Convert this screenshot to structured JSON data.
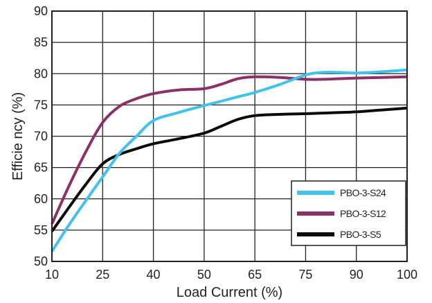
{
  "chart_data": {
    "type": "line",
    "title": "",
    "xlabel": "Load Current (%)",
    "ylabel": "Efficie ncy (%)",
    "x_categories": [
      "10",
      "25",
      "40",
      "50",
      "65",
      "75",
      "90",
      "100"
    ],
    "xlim": [
      10,
      100
    ],
    "ylim": [
      50,
      90
    ],
    "y_ticks": [
      "50",
      "55",
      "60",
      "65",
      "70",
      "75",
      "80",
      "85",
      "90"
    ],
    "grid": true,
    "legend_position": "bottom-right",
    "series": [
      {
        "name": "PBO-3-S24",
        "color": "#3fc2ec",
        "points": [
          [
            10,
            51.6
          ],
          [
            15,
            55.8
          ],
          [
            20,
            59.7
          ],
          [
            25,
            63.5
          ],
          [
            30,
            67.3
          ],
          [
            35,
            70.0
          ],
          [
            40,
            72.5
          ],
          [
            45,
            73.8
          ],
          [
            50,
            74.9
          ],
          [
            55,
            75.6
          ],
          [
            60,
            76.3
          ],
          [
            65,
            77.0
          ],
          [
            70,
            78.3
          ],
          [
            75,
            79.8
          ],
          [
            80,
            80.2
          ],
          [
            85,
            80.2
          ],
          [
            90,
            80.1
          ],
          [
            95,
            80.3
          ],
          [
            100,
            80.6
          ]
        ]
      },
      {
        "name": "PBO-3-S12",
        "color": "#8e2f65",
        "points": [
          [
            10,
            56.0
          ],
          [
            15,
            62.0
          ],
          [
            20,
            67.5
          ],
          [
            25,
            72.2
          ],
          [
            30,
            74.8
          ],
          [
            35,
            76.0
          ],
          [
            40,
            76.8
          ],
          [
            45,
            77.4
          ],
          [
            50,
            77.6
          ],
          [
            55,
            78.3
          ],
          [
            60,
            79.2
          ],
          [
            65,
            79.5
          ],
          [
            70,
            79.4
          ],
          [
            75,
            79.1
          ],
          [
            80,
            79.1
          ],
          [
            85,
            79.2
          ],
          [
            90,
            79.3
          ],
          [
            95,
            79.4
          ],
          [
            100,
            79.5
          ]
        ]
      },
      {
        "name": "PBO-3-S5",
        "color": "#0a0a0a",
        "points": [
          [
            10,
            54.8
          ],
          [
            15,
            58.6
          ],
          [
            20,
            62.3
          ],
          [
            25,
            65.6
          ],
          [
            30,
            67.1
          ],
          [
            35,
            68.0
          ],
          [
            40,
            68.8
          ],
          [
            45,
            69.6
          ],
          [
            50,
            70.5
          ],
          [
            55,
            71.6
          ],
          [
            60,
            72.7
          ],
          [
            65,
            73.3
          ],
          [
            70,
            73.5
          ],
          [
            75,
            73.6
          ],
          [
            80,
            73.7
          ],
          [
            85,
            73.8
          ],
          [
            90,
            73.9
          ],
          [
            95,
            74.2
          ],
          [
            100,
            74.5
          ]
        ]
      }
    ]
  }
}
